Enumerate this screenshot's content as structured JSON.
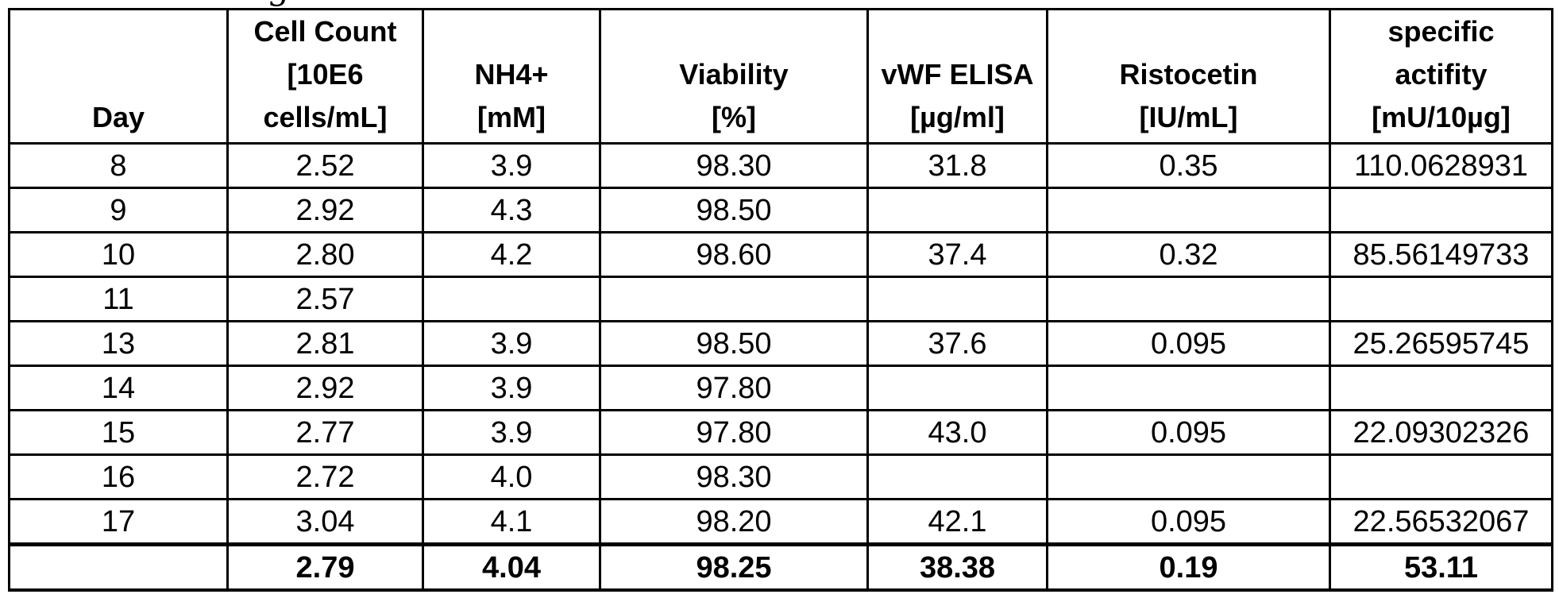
{
  "page": {
    "background_color": "#ffffff",
    "cropped_text_fragment": "g"
  },
  "table": {
    "border_color": "#000000",
    "text_color": "#000000",
    "columns": [
      {
        "id": "day",
        "label_lines": [
          "Day"
        ]
      },
      {
        "id": "cell_count",
        "label_lines": [
          "Cell Count",
          "[10E6",
          "cells/mL]"
        ]
      },
      {
        "id": "nh4",
        "label_lines": [
          "NH4+",
          "[mM]"
        ]
      },
      {
        "id": "viability",
        "label_lines": [
          "Viability",
          "[%]"
        ]
      },
      {
        "id": "vwf_elisa",
        "label_lines": [
          "vWF ELISA",
          "[µg/ml]"
        ]
      },
      {
        "id": "ristocetin",
        "label_lines": [
          "Ristocetin",
          "[IU/mL]"
        ]
      },
      {
        "id": "specific_activity",
        "label_lines": [
          "specific",
          "actifity",
          "[mU/10µg]"
        ]
      }
    ],
    "rows": [
      {
        "day": "8",
        "cell_count": "2.52",
        "nh4": "3.9",
        "viability": "98.30",
        "vwf_elisa": "31.8",
        "ristocetin": "0.35",
        "specific_activity": "110.0628931"
      },
      {
        "day": "9",
        "cell_count": "2.92",
        "nh4": "4.3",
        "viability": "98.50",
        "vwf_elisa": "",
        "ristocetin": "",
        "specific_activity": ""
      },
      {
        "day": "10",
        "cell_count": "2.80",
        "nh4": "4.2",
        "viability": "98.60",
        "vwf_elisa": "37.4",
        "ristocetin": "0.32",
        "specific_activity": "85.56149733"
      },
      {
        "day": "11",
        "cell_count": "2.57",
        "nh4": "",
        "viability": "",
        "vwf_elisa": "",
        "ristocetin": "",
        "specific_activity": ""
      },
      {
        "day": "13",
        "cell_count": "2.81",
        "nh4": "3.9",
        "viability": "98.50",
        "vwf_elisa": "37.6",
        "ristocetin": "0.095",
        "specific_activity": "25.26595745"
      },
      {
        "day": "14",
        "cell_count": "2.92",
        "nh4": "3.9",
        "viability": "97.80",
        "vwf_elisa": "",
        "ristocetin": "",
        "specific_activity": ""
      },
      {
        "day": "15",
        "cell_count": "2.77",
        "nh4": "3.9",
        "viability": "97.80",
        "vwf_elisa": "43.0",
        "ristocetin": "0.095",
        "specific_activity": "22.09302326"
      },
      {
        "day": "16",
        "cell_count": "2.72",
        "nh4": "4.0",
        "viability": "98.30",
        "vwf_elisa": "",
        "ristocetin": "",
        "specific_activity": ""
      },
      {
        "day": "17",
        "cell_count": "3.04",
        "nh4": "4.1",
        "viability": "98.20",
        "vwf_elisa": "42.1",
        "ristocetin": "0.095",
        "specific_activity": "22.56532067"
      }
    ],
    "summary_row": {
      "day": "",
      "cell_count": "2.79",
      "nh4": "4.04",
      "viability": "98.25",
      "vwf_elisa": "38.38",
      "ristocetin": "0.19",
      "specific_activity": "53.11"
    }
  }
}
